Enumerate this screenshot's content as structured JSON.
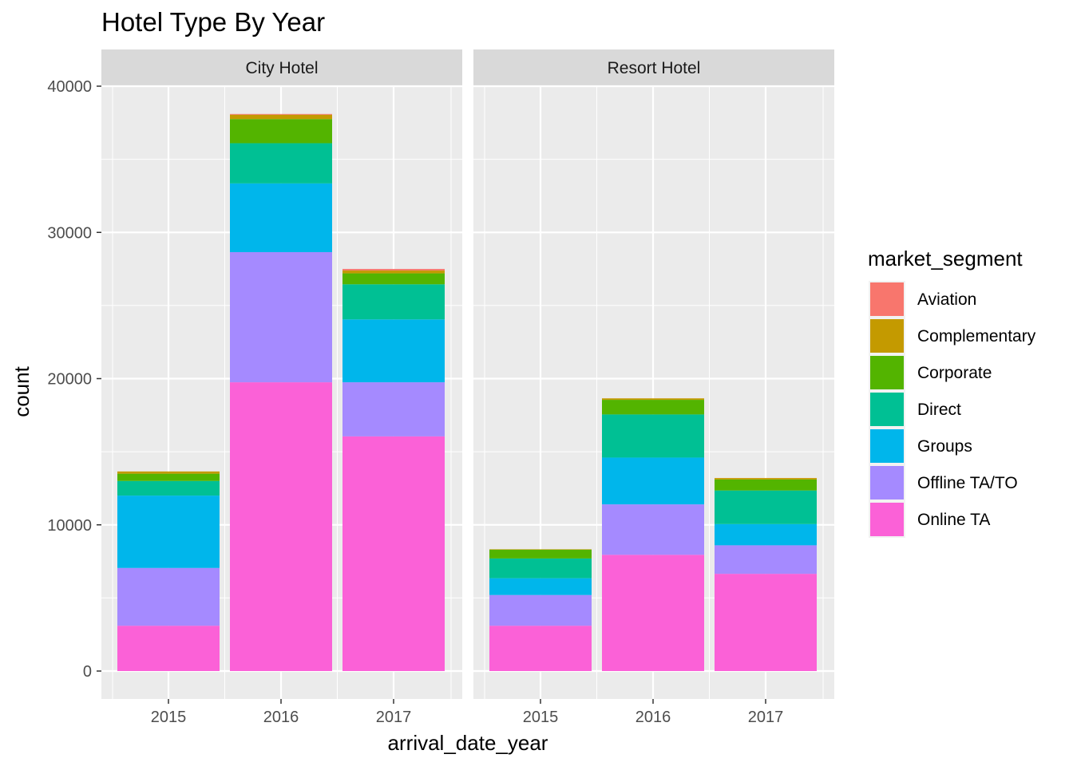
{
  "chart_data": {
    "type": "bar",
    "stacked": true,
    "title": "Hotel Type By Year",
    "xlabel": "arrival_date_year",
    "ylabel": "count",
    "ylim": [
      0,
      42000
    ],
    "yticks": [
      0,
      10000,
      20000,
      30000,
      40000
    ],
    "yticklabels": [
      "0",
      "10000",
      "20000",
      "30000",
      "40000"
    ],
    "categories": [
      "2015",
      "2016",
      "2017"
    ],
    "grid": true,
    "legend": {
      "title": "market_segment",
      "position": "right",
      "entries": [
        {
          "label": "Aviation",
          "color": "#F8766D"
        },
        {
          "label": "Complementary",
          "color": "#C49A00"
        },
        {
          "label": "Corporate",
          "color": "#53B400"
        },
        {
          "label": "Direct",
          "color": "#00C094"
        },
        {
          "label": "Groups",
          "color": "#00B6EB"
        },
        {
          "label": "Offline TA/TO",
          "color": "#A58AFF"
        },
        {
          "label": "Online TA",
          "color": "#FB61D7"
        }
      ]
    },
    "stack_order_bottom_to_top": [
      "Online TA",
      "Offline TA/TO",
      "Groups",
      "Direct",
      "Corporate",
      "Complementary",
      "Aviation"
    ],
    "panels": [
      {
        "name": "City Hotel",
        "series": [
          {
            "name": "Online TA",
            "values": [
              3100,
              19750,
              16050
            ]
          },
          {
            "name": "Offline TA/TO",
            "values": [
              3950,
              8900,
              3700
            ]
          },
          {
            "name": "Groups",
            "values": [
              4950,
              4700,
              4300
            ]
          },
          {
            "name": "Direct",
            "values": [
              1000,
              2750,
              2400
            ]
          },
          {
            "name": "Corporate",
            "values": [
              500,
              1650,
              750
            ]
          },
          {
            "name": "Complementary",
            "values": [
              150,
              300,
              200
            ]
          },
          {
            "name": "Aviation",
            "values": [
              0,
              50,
              100
            ]
          }
        ]
      },
      {
        "name": "Resort Hotel",
        "series": [
          {
            "name": "Online TA",
            "values": [
              3100,
              7950,
              6650
            ]
          },
          {
            "name": "Offline TA/TO",
            "values": [
              2100,
              3450,
              1950
            ]
          },
          {
            "name": "Groups",
            "values": [
              1150,
              3200,
              1450
            ]
          },
          {
            "name": "Direct",
            "values": [
              1350,
              2950,
              2300
            ]
          },
          {
            "name": "Corporate",
            "values": [
              600,
              1000,
              750
            ]
          },
          {
            "name": "Complementary",
            "values": [
              30,
              100,
              100
            ]
          },
          {
            "name": "Aviation",
            "values": [
              0,
              0,
              0
            ]
          }
        ]
      }
    ]
  }
}
